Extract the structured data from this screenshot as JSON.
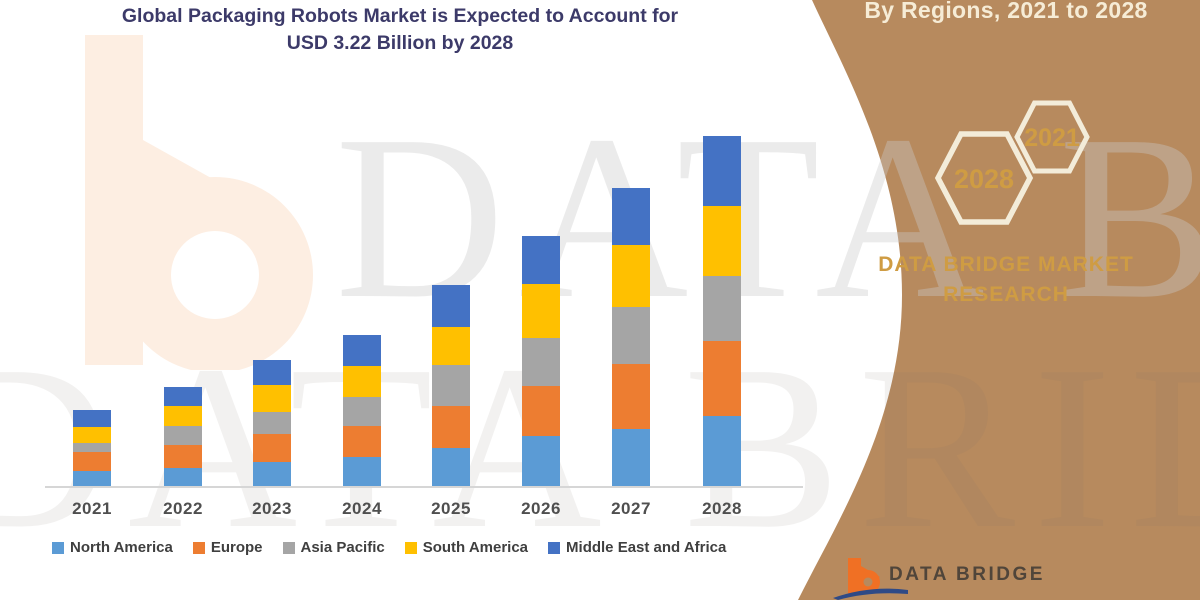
{
  "title": {
    "line1": "Global Packaging Robots Market is Expected to Account for",
    "line2": "USD 3.22 Billion by 2028"
  },
  "banner": {
    "heading": "By Regions, 2021 to 2028",
    "hexagons": [
      {
        "label": "2028"
      },
      {
        "label": "2021"
      }
    ],
    "brand_line1": "DATA BRIDGE MARKET",
    "brand_line2": "RESEARCH",
    "background_color": "#b78a5e",
    "hex_stroke_color": "#f3ecd9",
    "gold_text_color": "#cf9c43",
    "heading_color": "#f6ecd6"
  },
  "watermark": {
    "big_text": "DATA BRIDGE",
    "logo_letter": "b",
    "logo_letter_color": "#fdeee2"
  },
  "footer_logo": {
    "text": "DATA BRIDGE",
    "b_color": "#f07024",
    "swoosh_color": "#2f4a86"
  },
  "chart_data": {
    "type": "bar",
    "stacked": true,
    "title": "Global Packaging Robots Market is Expected to Account for USD 3.22 Billion by 2028",
    "unit": "USD Billion",
    "xlabel": "",
    "ylabel": "",
    "ylim": [
      0,
      3.4
    ],
    "gridlines": false,
    "legend_position": "bottom",
    "categories": [
      "2021",
      "2022",
      "2023",
      "2024",
      "2025",
      "2026",
      "2027",
      "2028"
    ],
    "series": [
      {
        "name": "North America",
        "color": "#5B9BD5",
        "values": [
          0.14,
          0.17,
          0.22,
          0.27,
          0.35,
          0.46,
          0.52,
          0.64
        ]
      },
      {
        "name": "Europe",
        "color": "#ED7D31",
        "values": [
          0.17,
          0.21,
          0.26,
          0.28,
          0.39,
          0.46,
          0.6,
          0.69
        ]
      },
      {
        "name": "Asia Pacific",
        "color": "#A5A5A5",
        "values": [
          0.09,
          0.17,
          0.2,
          0.27,
          0.37,
          0.44,
          0.53,
          0.6
        ]
      },
      {
        "name": "South America",
        "color": "#FFC000",
        "values": [
          0.14,
          0.19,
          0.25,
          0.28,
          0.35,
          0.5,
          0.57,
          0.65
        ]
      },
      {
        "name": "Middle East and Africa",
        "color": "#4472C4",
        "values": [
          0.16,
          0.17,
          0.23,
          0.29,
          0.39,
          0.44,
          0.52,
          0.64
        ]
      }
    ],
    "totals": [
      0.7,
      0.91,
      1.16,
      1.39,
      1.85,
      2.3,
      2.74,
      3.22
    ],
    "highlight_total": {
      "year": "2028",
      "value": "3.22",
      "label": "USD 3.22 Billion"
    }
  }
}
